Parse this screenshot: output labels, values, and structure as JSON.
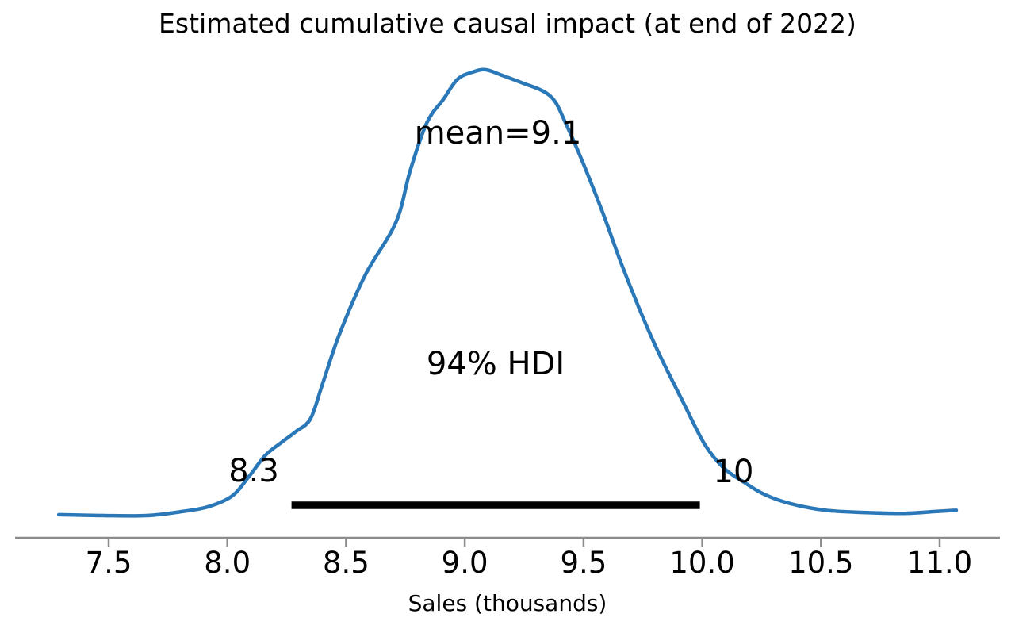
{
  "chart_data": {
    "type": "line",
    "title": "Estimated cumulative causal impact (at end of 2022)",
    "xlabel": "Sales (thousands)",
    "ylabel": "",
    "grid": false,
    "legend": false,
    "xlim": [
      7.11,
      11.25
    ],
    "x_ticks": [
      7.5,
      8.0,
      8.5,
      9.0,
      9.5,
      10.0,
      10.5,
      11.0
    ],
    "x_tick_labels": [
      "7.5",
      "8.0",
      "8.5",
      "9.0",
      "9.5",
      "10.0",
      "10.5",
      "11.0"
    ],
    "mean": 9.1,
    "hdi": {
      "probability": "94%",
      "lower": 8.3,
      "upper": 10,
      "bar_x": [
        8.27,
        9.99
      ]
    },
    "annotations": {
      "mean_label": "mean=9.1",
      "hdi_label": "94% HDI",
      "hdi_lower_label": "8.3",
      "hdi_upper_label": "10"
    },
    "series": [
      {
        "name": "posterior density (KDE)",
        "points": [
          [
            7.29,
            0.002
          ],
          [
            7.48,
            0.0
          ],
          [
            7.66,
            0.0
          ],
          [
            7.81,
            0.009
          ],
          [
            7.92,
            0.02
          ],
          [
            8.02,
            0.044
          ],
          [
            8.09,
            0.087
          ],
          [
            8.16,
            0.135
          ],
          [
            8.23,
            0.165
          ],
          [
            8.29,
            0.189
          ],
          [
            8.35,
            0.217
          ],
          [
            8.4,
            0.294
          ],
          [
            8.47,
            0.404
          ],
          [
            8.58,
            0.539
          ],
          [
            8.71,
            0.658
          ],
          [
            8.77,
            0.774
          ],
          [
            8.84,
            0.881
          ],
          [
            8.91,
            0.934
          ],
          [
            8.97,
            0.979
          ],
          [
            9.04,
            0.996
          ],
          [
            9.09,
            1.0
          ],
          [
            9.15,
            0.989
          ],
          [
            9.24,
            0.971
          ],
          [
            9.33,
            0.952
          ],
          [
            9.38,
            0.929
          ],
          [
            9.42,
            0.886
          ],
          [
            9.49,
            0.801
          ],
          [
            9.58,
            0.681
          ],
          [
            9.66,
            0.564
          ],
          [
            9.75,
            0.445
          ],
          [
            9.82,
            0.361
          ],
          [
            9.92,
            0.254
          ],
          [
            10.01,
            0.16
          ],
          [
            10.09,
            0.107
          ],
          [
            10.17,
            0.077
          ],
          [
            10.26,
            0.048
          ],
          [
            10.37,
            0.027
          ],
          [
            10.52,
            0.012
          ],
          [
            10.68,
            0.007
          ],
          [
            10.85,
            0.005
          ],
          [
            10.98,
            0.009
          ],
          [
            11.07,
            0.012
          ]
        ]
      }
    ],
    "colors": {
      "curve": "#2a78b8",
      "hdi_bar": "#000000",
      "axis": "#8c8c8c",
      "text": "#000000",
      "background": "#ffffff"
    }
  }
}
